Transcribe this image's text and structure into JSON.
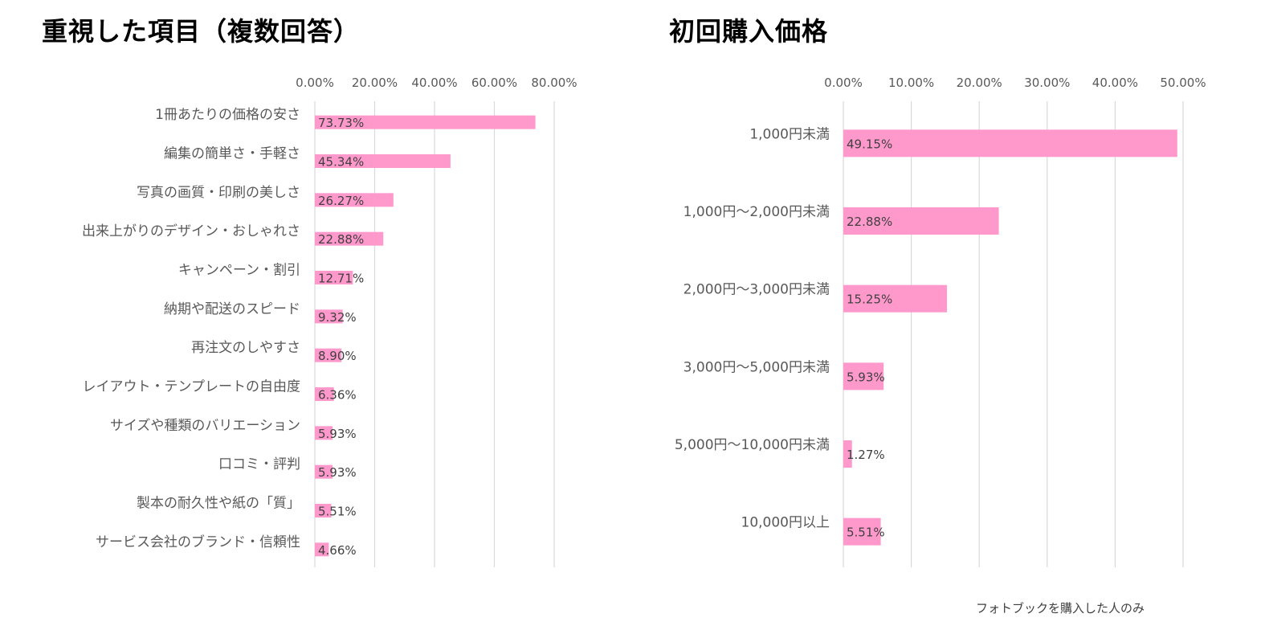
{
  "chart_data": [
    {
      "type": "bar",
      "orientation": "horizontal",
      "title": "重視した項目（複数回答）",
      "categories": [
        "1冊あたりの価格の安さ",
        "編集の簡単さ・手軽さ",
        "写真の画質・印刷の美しさ",
        "出来上がりのデザイン・おしゃれさ",
        "キャンペーン・割引",
        "納期や配送のスピード",
        "再注文のしやすさ",
        "レイアウト・テンプレートの自由度",
        "サイズや種類のバリエーション",
        "口コミ・評判",
        "製本の耐久性や紙の「質」",
        "サービス会社のブランド・信頼性"
      ],
      "values": [
        73.73,
        45.34,
        26.27,
        22.88,
        12.71,
        9.32,
        8.9,
        6.36,
        5.93,
        5.93,
        5.51,
        4.66
      ],
      "value_labels": [
        "73.73%",
        "45.34%",
        "26.27%",
        "22.88%",
        "12.71%",
        "9.32%",
        "8.90%",
        "6.36%",
        "5.93%",
        "5.93%",
        "5.51%",
        "4.66%"
      ],
      "xlim": [
        0,
        80
      ],
      "xticks": [
        0,
        20,
        40,
        60,
        80
      ],
      "xtick_labels": [
        "0.00%",
        "20.00%",
        "40.00%",
        "60.00%",
        "80.00%"
      ],
      "axis_position": "top",
      "grid": true,
      "bar_color": "#FF99CC"
    },
    {
      "type": "bar",
      "orientation": "horizontal",
      "title": "初回購入価格",
      "categories": [
        "1,000円未満",
        "1,000円～2,000円未満",
        "2,000円～3,000円未満",
        "3,000円～5,000円未満",
        "5,000円～10,000円未満",
        "10,000円以上"
      ],
      "values": [
        49.15,
        22.88,
        15.25,
        5.93,
        1.27,
        5.51
      ],
      "value_labels": [
        "49.15%",
        "22.88%",
        "15.25%",
        "5.93%",
        "1.27%",
        "5.51%"
      ],
      "xlim": [
        0,
        50
      ],
      "xticks": [
        0,
        10,
        20,
        30,
        40,
        50
      ],
      "xtick_labels": [
        "0.00%",
        "10.00%",
        "20.00%",
        "30.00%",
        "40.00%",
        "50.00%"
      ],
      "axis_position": "top",
      "grid": true,
      "bar_color": "#FF99CC",
      "footnote": "フォトブックを購入した人のみ"
    }
  ],
  "colors": {
    "bar": "#FF99CC",
    "grid": "#D9D9D9",
    "title": "#000000",
    "text": "#595959"
  }
}
